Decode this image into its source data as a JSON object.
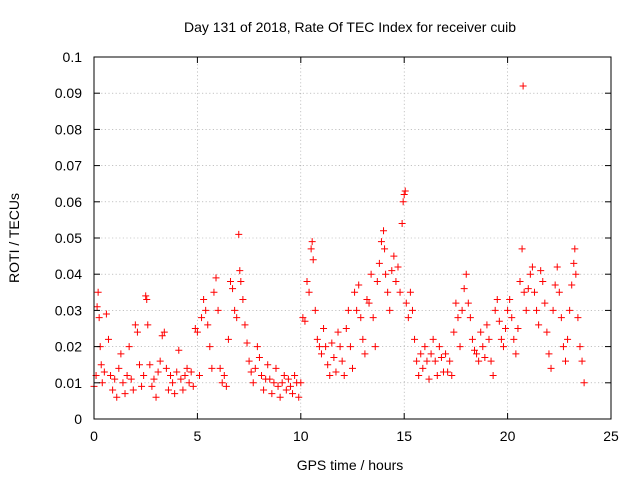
{
  "chart_data": {
    "type": "scatter",
    "title": "Day 131 of 2018, Rate Of TEC Index for receiver cuib",
    "xlabel": "GPS time / hours",
    "ylabel": "ROTI / TECUs",
    "xlim": [
      0,
      25
    ],
    "ylim": [
      0,
      0.1
    ],
    "xticks": [
      0,
      5,
      10,
      15,
      20,
      25
    ],
    "xtick_labels": [
      "0",
      "5",
      "10",
      "15",
      "20",
      "25"
    ],
    "yticks": [
      0,
      0.01,
      0.02,
      0.03,
      0.04,
      0.05,
      0.06,
      0.07,
      0.08,
      0.09,
      0.1
    ],
    "ytick_labels": [
      "0",
      "0.01",
      "0.02",
      "0.03",
      "0.04",
      "0.05",
      "0.06",
      "0.07",
      "0.08",
      "0.09",
      "0.1"
    ],
    "grid": true,
    "marker": "+",
    "color": "#ff0000",
    "series": [
      {
        "name": "ROTI",
        "points": [
          [
            0.0,
            0.009
          ],
          [
            0.1,
            0.012
          ],
          [
            0.15,
            0.031
          ],
          [
            0.2,
            0.035
          ],
          [
            0.25,
            0.028
          ],
          [
            0.3,
            0.02
          ],
          [
            0.35,
            0.015
          ],
          [
            0.4,
            0.01
          ],
          [
            0.5,
            0.013
          ],
          [
            0.6,
            0.029
          ],
          [
            0.7,
            0.022
          ],
          [
            0.8,
            0.012
          ],
          [
            0.9,
            0.008
          ],
          [
            1.0,
            0.011
          ],
          [
            1.1,
            0.006
          ],
          [
            1.2,
            0.014
          ],
          [
            1.3,
            0.018
          ],
          [
            1.4,
            0.01
          ],
          [
            1.5,
            0.007
          ],
          [
            1.6,
            0.012
          ],
          [
            1.7,
            0.02
          ],
          [
            1.8,
            0.011
          ],
          [
            1.9,
            0.008
          ],
          [
            2.0,
            0.026
          ],
          [
            2.1,
            0.024
          ],
          [
            2.2,
            0.015
          ],
          [
            2.3,
            0.009
          ],
          [
            2.4,
            0.012
          ],
          [
            2.5,
            0.034
          ],
          [
            2.55,
            0.033
          ],
          [
            2.6,
            0.026
          ],
          [
            2.7,
            0.015
          ],
          [
            2.8,
            0.009
          ],
          [
            2.9,
            0.011
          ],
          [
            3.0,
            0.006
          ],
          [
            3.1,
            0.013
          ],
          [
            3.2,
            0.016
          ],
          [
            3.3,
            0.023
          ],
          [
            3.4,
            0.024
          ],
          [
            3.5,
            0.014
          ],
          [
            3.6,
            0.008
          ],
          [
            3.7,
            0.012
          ],
          [
            3.8,
            0.01
          ],
          [
            3.9,
            0.007
          ],
          [
            4.0,
            0.013
          ],
          [
            4.1,
            0.019
          ],
          [
            4.2,
            0.011
          ],
          [
            4.3,
            0.008
          ],
          [
            4.4,
            0.012
          ],
          [
            4.5,
            0.014
          ],
          [
            4.6,
            0.01
          ],
          [
            4.7,
            0.013
          ],
          [
            4.8,
            0.009
          ],
          [
            4.9,
            0.025
          ],
          [
            5.0,
            0.024
          ],
          [
            5.1,
            0.012
          ],
          [
            5.2,
            0.028
          ],
          [
            5.3,
            0.033
          ],
          [
            5.4,
            0.03
          ],
          [
            5.5,
            0.026
          ],
          [
            5.6,
            0.02
          ],
          [
            5.7,
            0.014
          ],
          [
            5.8,
            0.035
          ],
          [
            5.9,
            0.039
          ],
          [
            6.0,
            0.03
          ],
          [
            6.1,
            0.014
          ],
          [
            6.2,
            0.01
          ],
          [
            6.3,
            0.012
          ],
          [
            6.4,
            0.009
          ],
          [
            6.5,
            0.022
          ],
          [
            6.6,
            0.038
          ],
          [
            6.7,
            0.036
          ],
          [
            6.8,
            0.03
          ],
          [
            6.9,
            0.028
          ],
          [
            7.0,
            0.051
          ],
          [
            7.05,
            0.041
          ],
          [
            7.1,
            0.038
          ],
          [
            7.2,
            0.033
          ],
          [
            7.3,
            0.026
          ],
          [
            7.4,
            0.021
          ],
          [
            7.5,
            0.016
          ],
          [
            7.6,
            0.013
          ],
          [
            7.7,
            0.01
          ],
          [
            7.8,
            0.014
          ],
          [
            7.9,
            0.02
          ],
          [
            8.0,
            0.017
          ],
          [
            8.1,
            0.012
          ],
          [
            8.2,
            0.008
          ],
          [
            8.3,
            0.011
          ],
          [
            8.4,
            0.015
          ],
          [
            8.5,
            0.011
          ],
          [
            8.6,
            0.007
          ],
          [
            8.7,
            0.01
          ],
          [
            8.8,
            0.014
          ],
          [
            8.9,
            0.009
          ],
          [
            9.0,
            0.006
          ],
          [
            9.1,
            0.01
          ],
          [
            9.2,
            0.012
          ],
          [
            9.3,
            0.008
          ],
          [
            9.4,
            0.011
          ],
          [
            9.5,
            0.009
          ],
          [
            9.6,
            0.007
          ],
          [
            9.7,
            0.012
          ],
          [
            9.8,
            0.01
          ],
          [
            9.9,
            0.006
          ],
          [
            10.0,
            0.01
          ],
          [
            10.1,
            0.028
          ],
          [
            10.2,
            0.027
          ],
          [
            10.3,
            0.038
          ],
          [
            10.4,
            0.035
          ],
          [
            10.5,
            0.047
          ],
          [
            10.55,
            0.049
          ],
          [
            10.6,
            0.044
          ],
          [
            10.7,
            0.03
          ],
          [
            10.8,
            0.022
          ],
          [
            10.9,
            0.02
          ],
          [
            11.0,
            0.018
          ],
          [
            11.1,
            0.025
          ],
          [
            11.2,
            0.02
          ],
          [
            11.3,
            0.015
          ],
          [
            11.4,
            0.012
          ],
          [
            11.5,
            0.021
          ],
          [
            11.6,
            0.017
          ],
          [
            11.7,
            0.013
          ],
          [
            11.8,
            0.024
          ],
          [
            11.9,
            0.02
          ],
          [
            12.0,
            0.016
          ],
          [
            12.1,
            0.012
          ],
          [
            12.2,
            0.025
          ],
          [
            12.3,
            0.03
          ],
          [
            12.4,
            0.02
          ],
          [
            12.5,
            0.014
          ],
          [
            12.6,
            0.035
          ],
          [
            12.7,
            0.03
          ],
          [
            12.8,
            0.037
          ],
          [
            12.9,
            0.028
          ],
          [
            13.0,
            0.022
          ],
          [
            13.1,
            0.018
          ],
          [
            13.2,
            0.033
          ],
          [
            13.3,
            0.032
          ],
          [
            13.4,
            0.04
          ],
          [
            13.5,
            0.028
          ],
          [
            13.6,
            0.02
          ],
          [
            13.7,
            0.038
          ],
          [
            13.8,
            0.043
          ],
          [
            13.9,
            0.049
          ],
          [
            14.0,
            0.052
          ],
          [
            14.05,
            0.047
          ],
          [
            14.1,
            0.04
          ],
          [
            14.2,
            0.035
          ],
          [
            14.3,
            0.03
          ],
          [
            14.4,
            0.041
          ],
          [
            14.5,
            0.045
          ],
          [
            14.6,
            0.038
          ],
          [
            14.7,
            0.042
          ],
          [
            14.8,
            0.035
          ],
          [
            14.9,
            0.054
          ],
          [
            14.95,
            0.06
          ],
          [
            15.0,
            0.062
          ],
          [
            15.05,
            0.063
          ],
          [
            15.1,
            0.032
          ],
          [
            15.2,
            0.028
          ],
          [
            15.3,
            0.035
          ],
          [
            15.4,
            0.03
          ],
          [
            15.5,
            0.022
          ],
          [
            15.6,
            0.016
          ],
          [
            15.7,
            0.012
          ],
          [
            15.8,
            0.018
          ],
          [
            15.9,
            0.014
          ],
          [
            16.0,
            0.02
          ],
          [
            16.1,
            0.016
          ],
          [
            16.2,
            0.011
          ],
          [
            16.3,
            0.018
          ],
          [
            16.4,
            0.022
          ],
          [
            16.5,
            0.016
          ],
          [
            16.6,
            0.012
          ],
          [
            16.7,
            0.02
          ],
          [
            16.8,
            0.017
          ],
          [
            16.9,
            0.013
          ],
          [
            17.0,
            0.018
          ],
          [
            17.1,
            0.013
          ],
          [
            17.2,
            0.016
          ],
          [
            17.3,
            0.012
          ],
          [
            17.4,
            0.024
          ],
          [
            17.5,
            0.032
          ],
          [
            17.6,
            0.028
          ],
          [
            17.7,
            0.02
          ],
          [
            17.8,
            0.03
          ],
          [
            17.9,
            0.036
          ],
          [
            18.0,
            0.04
          ],
          [
            18.1,
            0.032
          ],
          [
            18.2,
            0.028
          ],
          [
            18.3,
            0.022
          ],
          [
            18.4,
            0.019
          ],
          [
            18.5,
            0.018
          ],
          [
            18.6,
            0.016
          ],
          [
            18.7,
            0.024
          ],
          [
            18.8,
            0.02
          ],
          [
            18.9,
            0.017
          ],
          [
            19.0,
            0.026
          ],
          [
            19.1,
            0.022
          ],
          [
            19.2,
            0.016
          ],
          [
            19.3,
            0.012
          ],
          [
            19.4,
            0.03
          ],
          [
            19.5,
            0.033
          ],
          [
            19.6,
            0.027
          ],
          [
            19.7,
            0.022
          ],
          [
            19.8,
            0.02
          ],
          [
            19.9,
            0.025
          ],
          [
            20.0,
            0.03
          ],
          [
            20.1,
            0.033
          ],
          [
            20.2,
            0.028
          ],
          [
            20.3,
            0.022
          ],
          [
            20.4,
            0.018
          ],
          [
            20.5,
            0.025
          ],
          [
            20.6,
            0.038
          ],
          [
            20.7,
            0.047
          ],
          [
            20.75,
            0.092
          ],
          [
            20.8,
            0.035
          ],
          [
            20.9,
            0.03
          ],
          [
            21.0,
            0.036
          ],
          [
            21.1,
            0.04
          ],
          [
            21.2,
            0.042
          ],
          [
            21.3,
            0.035
          ],
          [
            21.4,
            0.03
          ],
          [
            21.5,
            0.026
          ],
          [
            21.6,
            0.041
          ],
          [
            21.7,
            0.038
          ],
          [
            21.8,
            0.032
          ],
          [
            21.9,
            0.024
          ],
          [
            22.0,
            0.018
          ],
          [
            22.1,
            0.014
          ],
          [
            22.2,
            0.03
          ],
          [
            22.3,
            0.037
          ],
          [
            22.4,
            0.042
          ],
          [
            22.5,
            0.035
          ],
          [
            22.6,
            0.028
          ],
          [
            22.7,
            0.02
          ],
          [
            22.8,
            0.016
          ],
          [
            22.9,
            0.022
          ],
          [
            23.0,
            0.03
          ],
          [
            23.1,
            0.037
          ],
          [
            23.2,
            0.043
          ],
          [
            23.25,
            0.047
          ],
          [
            23.3,
            0.04
          ],
          [
            23.4,
            0.028
          ],
          [
            23.5,
            0.02
          ],
          [
            23.6,
            0.016
          ],
          [
            23.7,
            0.01
          ]
        ]
      }
    ]
  }
}
